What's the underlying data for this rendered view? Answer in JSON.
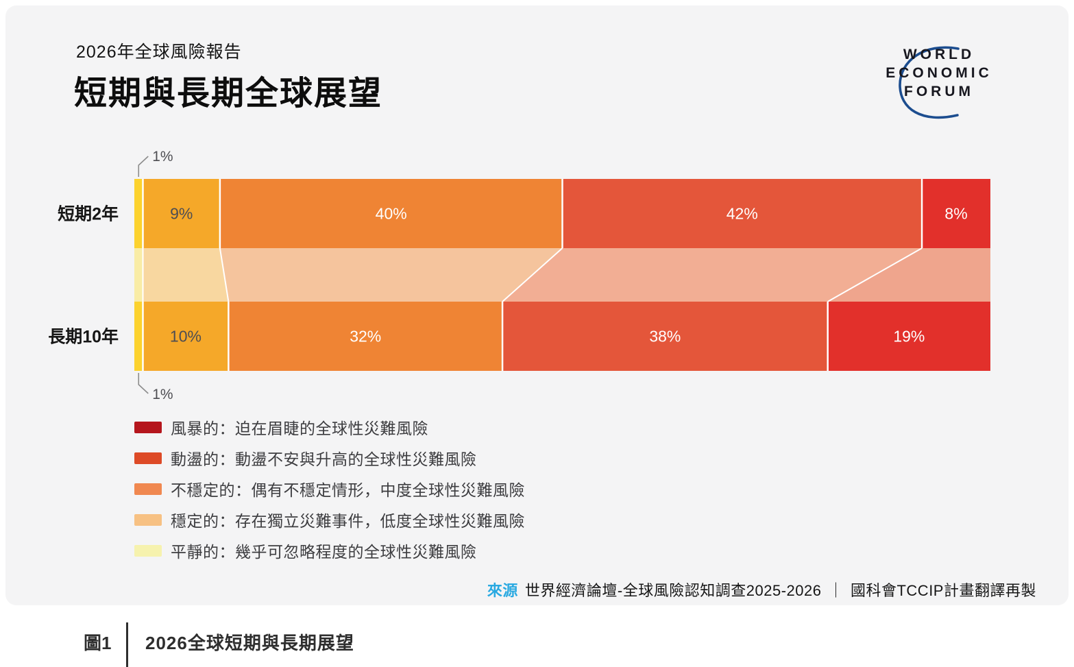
{
  "header": {
    "report_label": "2026年全球風險報告",
    "title": "短期與長期全球展望"
  },
  "logo": {
    "line1": "WORLD",
    "line2": "ECONOMIC",
    "line3": "FORUM",
    "arc_color": "#1c4d8f"
  },
  "chart_data": {
    "type": "bar",
    "subtype": "horizontal-stacked-with-alluvial-flows",
    "unit": "%",
    "categories": [
      "短期2年",
      "長期10年"
    ],
    "series_order": [
      "平靜的",
      "穩定的",
      "不穩定的",
      "動盪的",
      "風暴的"
    ],
    "rows": [
      {
        "label": "短期2年",
        "values": [
          1,
          9,
          40,
          42,
          8
        ]
      },
      {
        "label": "長期10年",
        "values": [
          1,
          10,
          32,
          38,
          19
        ]
      }
    ],
    "bar_colors": [
      "#fcd22e",
      "#f5a829",
      "#ef8434",
      "#e4563a",
      "#e2302b"
    ],
    "flow_colors": [
      "#f9eca6",
      "#f8d7a0",
      "#f5c49d",
      "#f2ae94",
      "#efa58d"
    ],
    "label_colors": [
      "#4d4d52",
      "#4d4d52",
      "#ffffff",
      "#ffffff",
      "#ffffff"
    ],
    "xlim": [
      0,
      100
    ],
    "grid": "off",
    "legend_position": "bottom-left"
  },
  "legend": {
    "items": [
      {
        "label": "風暴的：迫在眉睫的全球性災難風險",
        "color": "#b5161d"
      },
      {
        "label": "動盪的：動盪不安與升高的全球性災難風險",
        "color": "#dd4a27"
      },
      {
        "label": "不穩定的：偶有不穩定情形，中度全球性災難風險",
        "color": "#f08850"
      },
      {
        "label": "穩定的：存在獨立災難事件，低度全球性災難風險",
        "color": "#f7c183"
      },
      {
        "label": "平靜的：幾乎可忽略程度的全球性災難風險",
        "color": "#f6f2ae"
      }
    ]
  },
  "source": {
    "label": "來源",
    "label_color": "#29a9e1",
    "text": "世界經濟論壇-全球風險認知調查2025-2026",
    "separator": "｜",
    "text2": "國科會TCCIP計畫翻譯再製"
  },
  "footer": {
    "figure_label": "圖1",
    "caption": "2026全球短期與長期展望"
  }
}
